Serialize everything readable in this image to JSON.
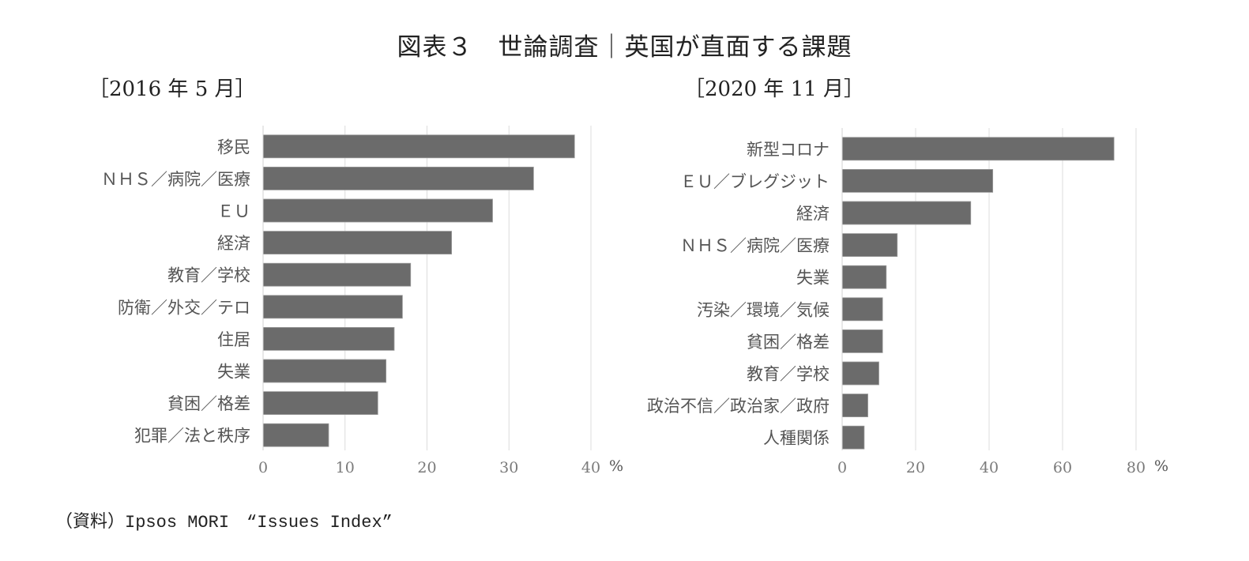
{
  "title": "図表３　世論調査｜英国が直面する課題",
  "source": {
    "prefix": "（資料）",
    "text": "Ipsos MORI　“Issues Index”"
  },
  "chart_data": [
    {
      "type": "bar",
      "orientation": "horizontal",
      "title": "［2016 年 5 月］",
      "categories": [
        "移民",
        "ＮＨＳ／病院／医療",
        "ＥＵ",
        "経済",
        "教育／学校",
        "防衛／外交／テロ",
        "住居",
        "失業",
        "貧困／格差",
        "犯罪／法と秩序"
      ],
      "values": [
        38,
        33,
        28,
        23,
        18,
        17,
        16,
        15,
        14,
        8
      ],
      "xlim": [
        0,
        40
      ],
      "xticks": [
        "0",
        "10",
        "20",
        "30",
        "40"
      ],
      "xtick_values": [
        0,
        10,
        20,
        30,
        40
      ],
      "unit": "%",
      "grid": true,
      "bar_color": "#6b6b6b"
    },
    {
      "type": "bar",
      "orientation": "horizontal",
      "title": "［2020 年 11 月］",
      "categories": [
        "新型コロナ",
        "ＥＵ／ブレグジット",
        "経済",
        "ＮＨＳ／病院／医療",
        "失業",
        "汚染／環境／気候",
        "貧困／格差",
        "教育／学校",
        "政治不信／政治家／政府",
        "人種関係"
      ],
      "values": [
        74,
        41,
        35,
        15,
        12,
        11,
        11,
        10,
        7,
        6
      ],
      "xlim": [
        0,
        80
      ],
      "xticks": [
        "0",
        "20",
        "40",
        "60",
        "80"
      ],
      "xtick_values": [
        0,
        20,
        40,
        60,
        80
      ],
      "unit": "%",
      "grid": true,
      "bar_color": "#6b6b6b"
    }
  ]
}
